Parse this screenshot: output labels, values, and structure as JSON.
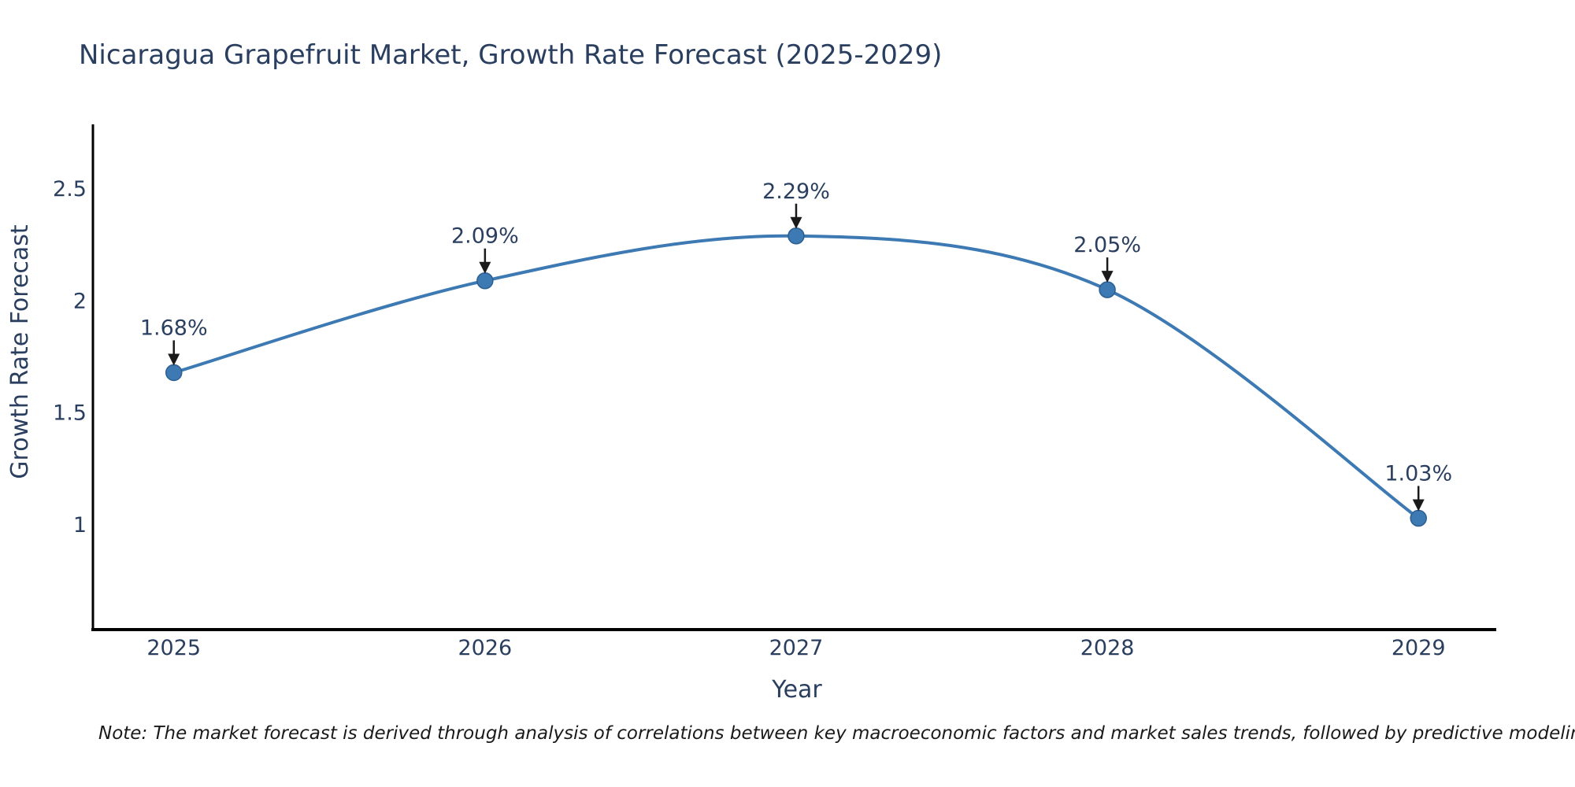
{
  "chart_data": {
    "type": "line",
    "title": "Nicaragua Grapefruit Market, Growth Rate Forecast (2025-2029)",
    "xlabel": "Year",
    "ylabel": "Growth Rate Forecast",
    "x": [
      2025,
      2026,
      2027,
      2028,
      2029
    ],
    "values": [
      1.68,
      2.09,
      2.29,
      2.05,
      1.03
    ],
    "point_labels": [
      "1.68%",
      "2.09%",
      "2.29%",
      "2.05%",
      "1.03%"
    ],
    "xticks": [
      {
        "value": 2025,
        "label": "2025"
      },
      {
        "value": 2026,
        "label": "2026"
      },
      {
        "value": 2027,
        "label": "2027"
      },
      {
        "value": 2028,
        "label": "2028"
      },
      {
        "value": 2029,
        "label": "2029"
      }
    ],
    "yticks": [
      {
        "value": 1,
        "label": "1"
      },
      {
        "value": 1.5,
        "label": "1.5"
      },
      {
        "value": 2,
        "label": "2"
      },
      {
        "value": 2.5,
        "label": "2.5"
      }
    ],
    "xlim": [
      2024.74,
      2029.25
    ],
    "ylim": [
      0.533,
      2.781
    ],
    "grid": false,
    "legend": "none",
    "line_shape": "spline",
    "colors": {
      "line": "#3d79b3",
      "marker_fill": "#3d79b3",
      "marker_edge": "#2d5f91",
      "arrow": "#1a1a1a",
      "axis": "#000000",
      "tick_text": "#2a3f5f",
      "annotation_text": "#2a3f5f"
    }
  },
  "note": "Note: The market forecast is derived through analysis of correlations between key macroeconomic factors and market sales trends, followed by predictive modeling to project future sales"
}
